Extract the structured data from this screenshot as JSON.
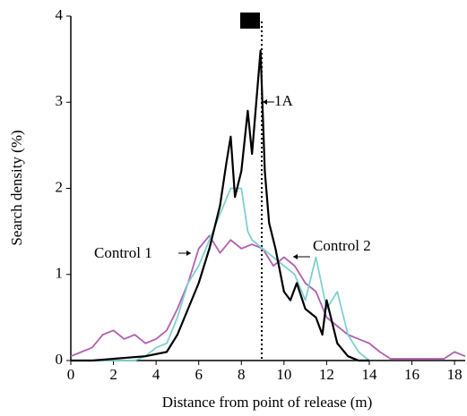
{
  "chart_data": {
    "type": "line",
    "xlabel": "Distance from point of release (m)",
    "ylabel": "Search density (%)",
    "xlim": [
      0,
      18.5
    ],
    "xticks": [
      0,
      2,
      4,
      6,
      8,
      10,
      12,
      14,
      16,
      18
    ],
    "ylim": [
      0,
      4
    ],
    "yticks": [
      0,
      1,
      2,
      3,
      4
    ],
    "annotations": [
      "1A",
      "Control 1",
      "Control 2"
    ],
    "series": [
      {
        "name": "Control 1",
        "color": "#b060b0",
        "x": [
          0,
          0.5,
          1,
          1.5,
          2,
          2.5,
          3,
          3.5,
          4,
          4.5,
          5,
          5.5,
          6,
          6.5,
          7,
          7.5,
          8,
          8.5,
          9,
          9.5,
          10,
          10.5,
          11,
          11.5,
          12,
          12.5,
          13,
          13.5,
          14,
          14.5,
          15,
          17.5,
          18,
          18.5
        ],
        "values": [
          0.05,
          0.1,
          0.15,
          0.3,
          0.35,
          0.25,
          0.3,
          0.2,
          0.25,
          0.35,
          0.6,
          0.9,
          1.3,
          1.45,
          1.25,
          1.4,
          1.3,
          1.35,
          1.3,
          1.1,
          1.2,
          1.1,
          0.9,
          0.8,
          0.5,
          0.4,
          0.3,
          0.25,
          0.2,
          0.1,
          0.02,
          0.02,
          0.1,
          0.05
        ]
      },
      {
        "name": "Control 2",
        "color": "#80d0d0",
        "x": [
          0,
          3,
          3.5,
          4,
          4.5,
          5,
          5.5,
          6,
          6.5,
          7,
          7.5,
          8,
          8.3,
          8.5,
          9,
          9.5,
          10,
          10.5,
          11,
          11.5,
          12,
          12.5,
          13,
          13.5,
          14
        ],
        "values": [
          0,
          0,
          0.05,
          0.15,
          0.2,
          0.5,
          0.9,
          1.1,
          1.4,
          1.7,
          2.0,
          2.0,
          1.5,
          1.4,
          1.3,
          1.2,
          1.1,
          1.0,
          0.7,
          1.2,
          0.6,
          0.8,
          0.3,
          0.1,
          0
        ]
      },
      {
        "name": "1A",
        "color": "#000000",
        "x": [
          0,
          1,
          3.5,
          4.5,
          5,
          5.5,
          6,
          6.5,
          7,
          7.3,
          7.5,
          7.7,
          8,
          8.3,
          8.5,
          8.7,
          8.9,
          9.1,
          9.3,
          9.6,
          10,
          10.3,
          10.6,
          11,
          11.5,
          11.8,
          12,
          12.5,
          13,
          13.5,
          14
        ],
        "values": [
          0,
          0,
          0.05,
          0.1,
          0.3,
          0.6,
          0.9,
          1.3,
          1.8,
          2.3,
          2.6,
          1.9,
          2.2,
          2.9,
          2.4,
          3.0,
          3.6,
          2.2,
          1.6,
          1.3,
          0.8,
          0.7,
          0.9,
          0.6,
          0.5,
          0.3,
          0.7,
          0.2,
          0.05,
          0,
          0
        ]
      }
    ]
  }
}
